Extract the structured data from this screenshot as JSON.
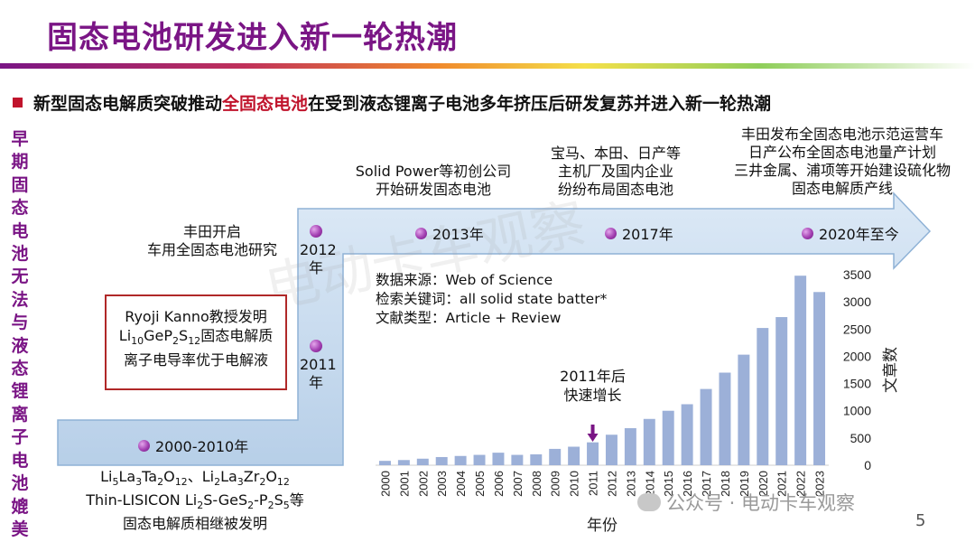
{
  "header": {
    "title": "固态电池研发进入新一轮热潮",
    "subtitle_before": "新型固态电解质突破推动",
    "subtitle_highlight": "全固态电池",
    "subtitle_after": "在受到液态锂离子电池多年挤压后研发复苏并进入新一轮热潮"
  },
  "side_label": "早期固态电池无法与液态锂离子电池媲美",
  "timeline": {
    "y2000": "2000-2010年",
    "y2011": "2011年",
    "y2012": "2012年",
    "y2013": "2013年",
    "y2017": "2017年",
    "y2020": "2020年至今",
    "toyota_line1": "丰田开启",
    "toyota_line2": "车用全固态电池研究",
    "kanno_line1": "Ryoji Kanno教授发明",
    "kanno_line3": "离子电导率优于电解液",
    "sp_line1": "Solid Power等初创公司",
    "sp_line2": "开始研发固态电池",
    "oem_line1": "宝马、本田、日产等",
    "oem_line2": "主机厂及国内企业",
    "oem_line3": "纷纷布局固态电池",
    "now_line1": "丰田发布全固态电池示范运营车",
    "now_line2": "日产公布全固态电池量产计划",
    "now_line3": "三井金属、浦项等开始建设硫化物",
    "now_line4": "固态电解质产线",
    "early_line2": "Thin-LISICON ",
    "early_line3": "固态电解质相继被发明"
  },
  "watermarks": {
    "center": "电动卡车观察",
    "footer": "公众号 · 电动卡车观察"
  },
  "page_number": "5",
  "chart_data": {
    "type": "bar",
    "color": "#9cb0d8",
    "info": [
      "数据来源：Web of Science",
      "检索关键词：all solid state batter*",
      "文献类型：Article + Review"
    ],
    "annotation": "2011年后\n快速增长",
    "annotation_category": "2011",
    "annotation_color": "#7a1585",
    "xlabel": "年份",
    "ylabel": "文章数",
    "ylim": [
      0,
      3500
    ],
    "yticks": [
      0,
      500,
      1000,
      1500,
      2000,
      2500,
      3000,
      3500
    ],
    "categories": [
      "2000",
      "2001",
      "2002",
      "2003",
      "2004",
      "2005",
      "2006",
      "2007",
      "2008",
      "2009",
      "2010",
      "2011",
      "2012",
      "2013",
      "2014",
      "2015",
      "2016",
      "2017",
      "2018",
      "2019",
      "2020",
      "2021",
      "2022",
      "2023"
    ],
    "values": [
      80,
      95,
      120,
      150,
      170,
      190,
      230,
      190,
      200,
      300,
      340,
      420,
      560,
      680,
      850,
      1000,
      1120,
      1400,
      1700,
      2030,
      2520,
      2720,
      3480,
      3180
    ]
  }
}
